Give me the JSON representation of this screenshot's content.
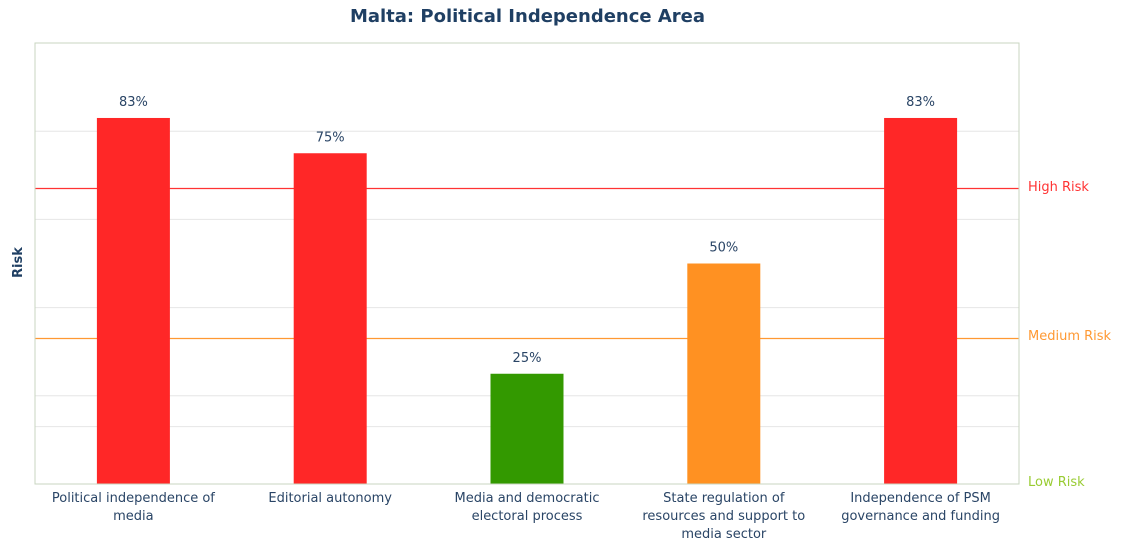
{
  "chart_data": {
    "type": "bar",
    "title": "Malta: Political Independence Area",
    "ylabel": "Risk",
    "categories": [
      "Political independence of media",
      "Editorial autonomy",
      "Media and democratic electoral process",
      "State regulation of resources and support to media sector",
      "Independence of PSM governance and funding"
    ],
    "values": [
      83,
      75,
      25,
      50,
      83
    ],
    "data_labels": [
      "83%",
      "75%",
      "25%",
      "50%",
      "83%"
    ],
    "bar_colors": [
      "#ff2727",
      "#ff2727",
      "#339900",
      "#ff9122",
      "#ff2727"
    ],
    "ylim": [
      0,
      100
    ],
    "grid": true,
    "reference_lines": [
      {
        "label": "High Risk",
        "value": 67,
        "color": "#ff3333"
      },
      {
        "label": "Medium Risk",
        "value": 33,
        "color": "#ff9933"
      },
      {
        "label": "Low Risk",
        "value": 0,
        "color": "#99cc33"
      }
    ]
  }
}
